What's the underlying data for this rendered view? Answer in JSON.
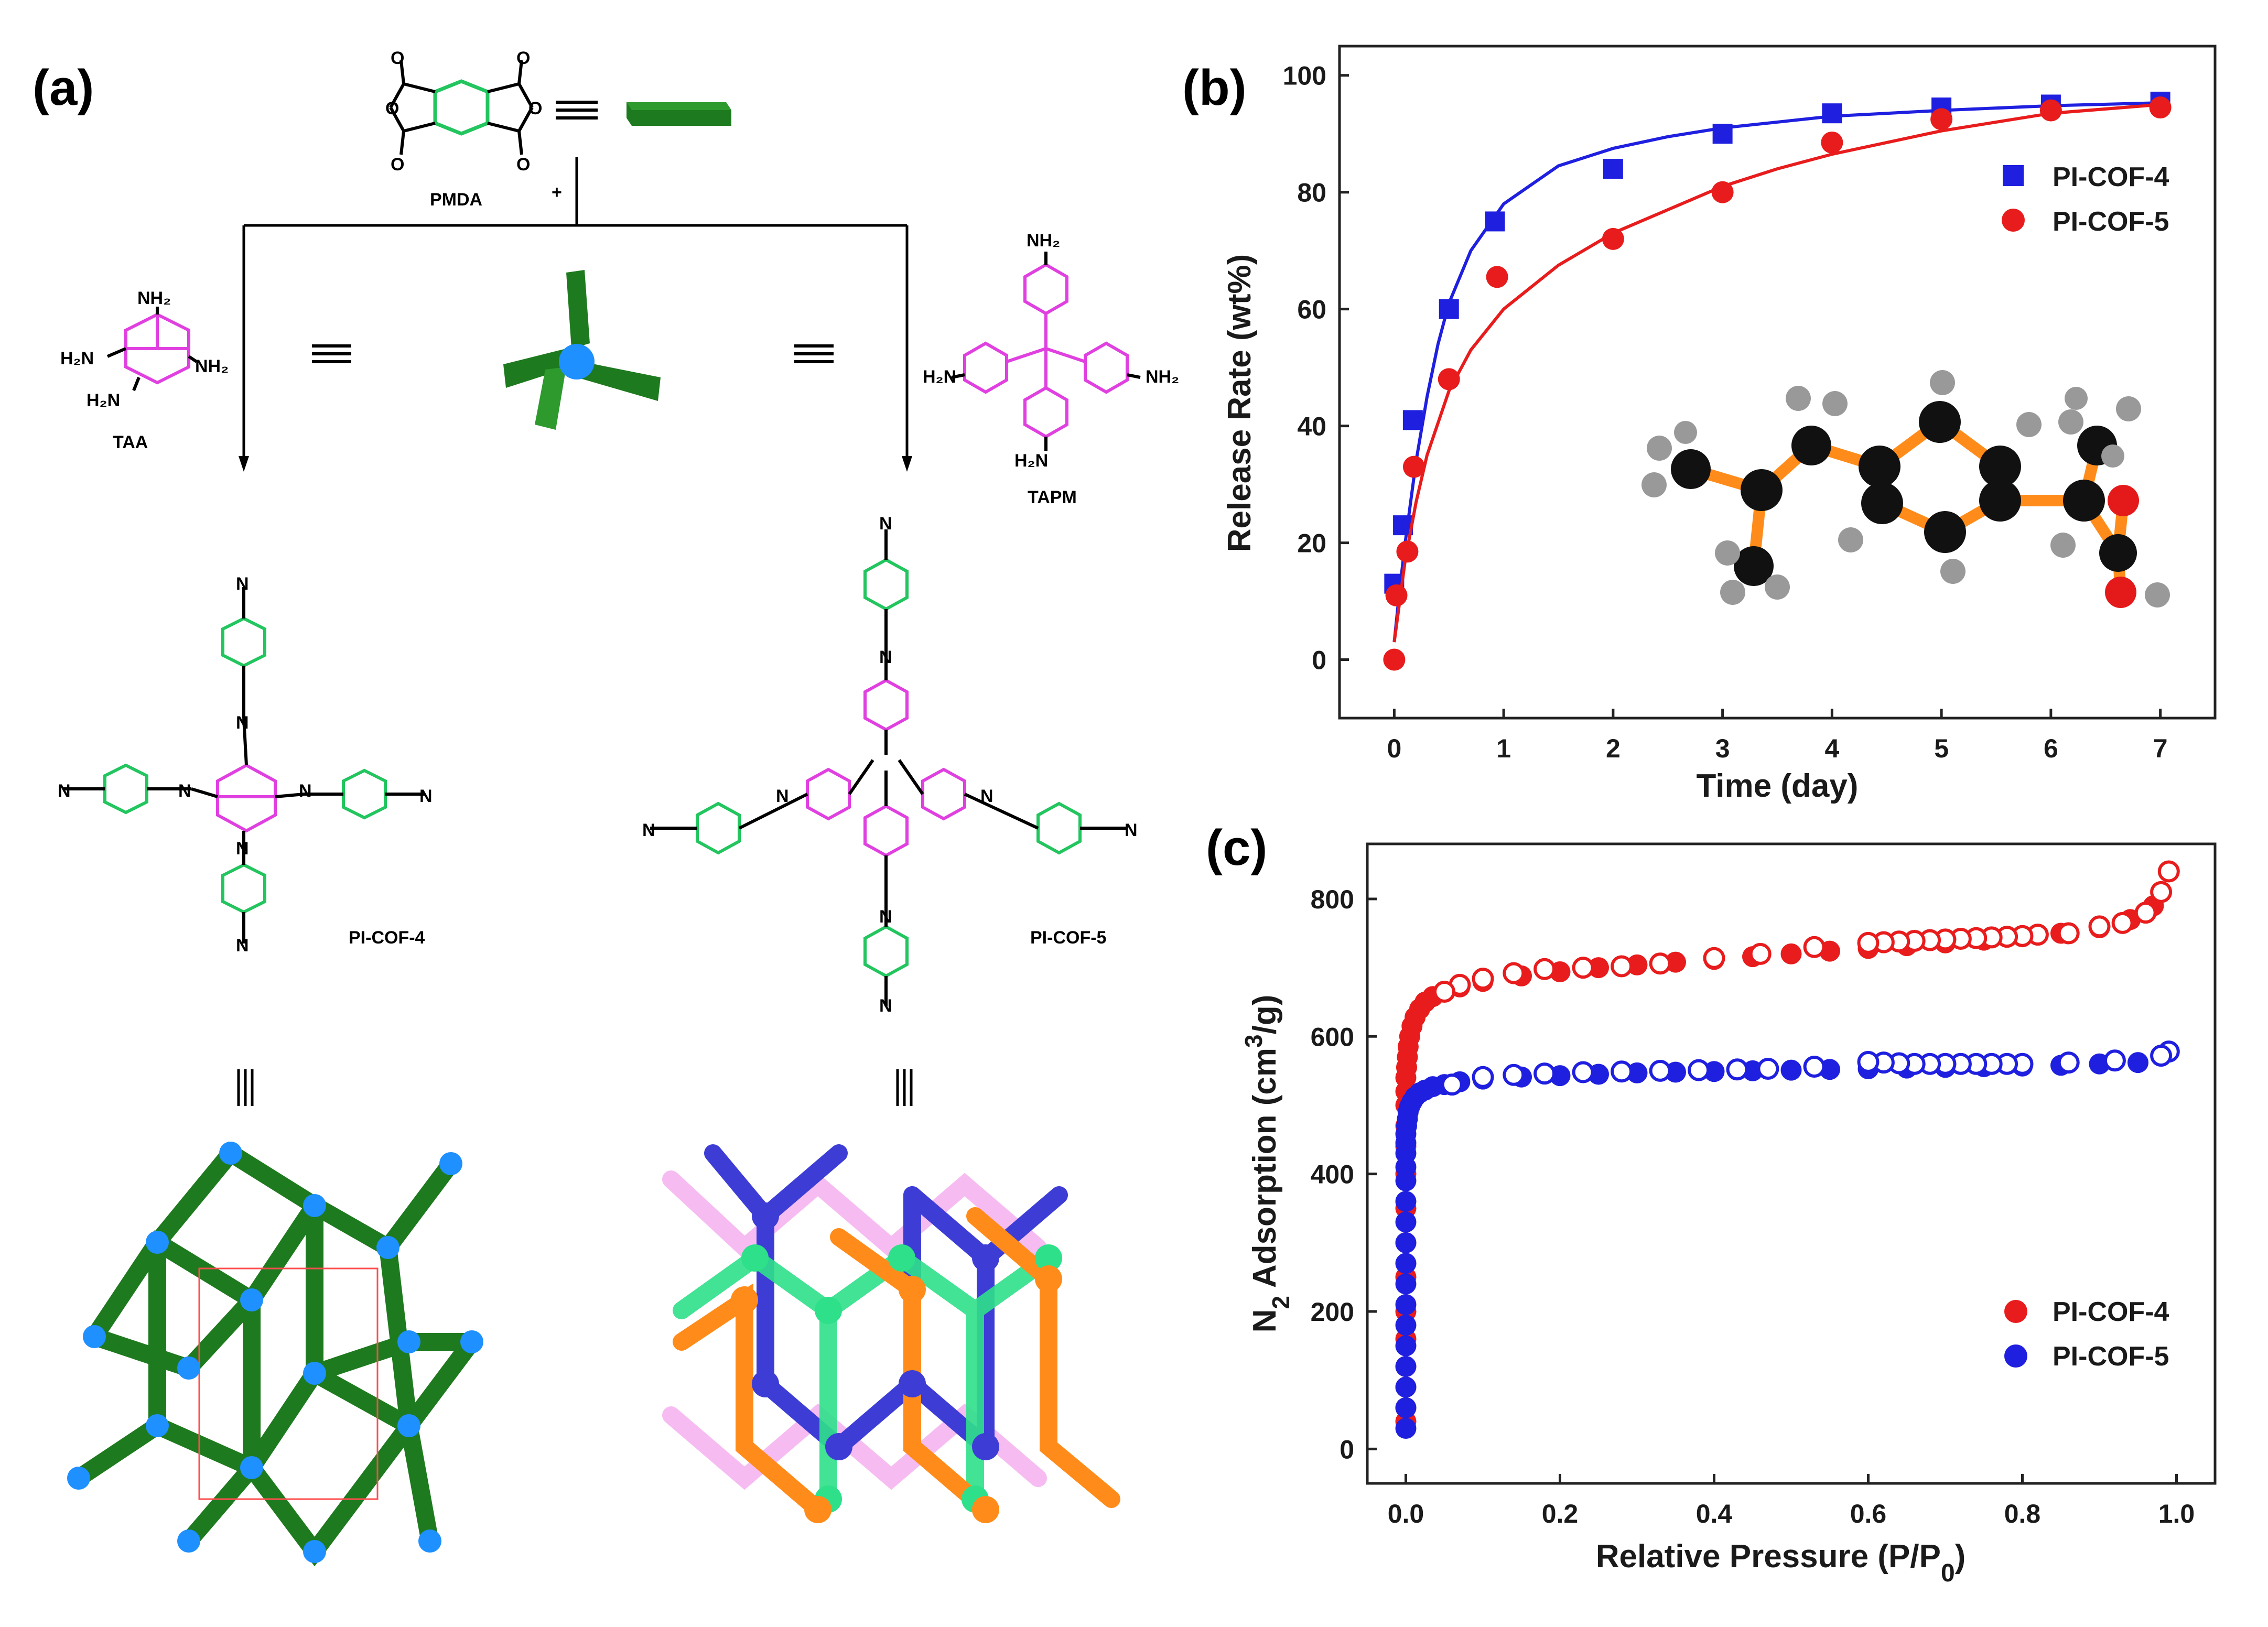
{
  "panels": {
    "a": {
      "label": "(a)",
      "plus": "+",
      "monomers": {
        "pmda": "PMDA",
        "taa": "TAA",
        "tapm": "TAPM"
      },
      "products": {
        "cof4": "PI-COF-4",
        "cof5": "PI-COF-5"
      },
      "equiv_symbol": "≡",
      "colors": {
        "green_rod": "#1e7a1e",
        "bright_green": "#22c55e",
        "magenta": "#e040e0",
        "node_blue": "#1e90ff",
        "orange": "#ff8c1a",
        "purple": "#3d3dd6"
      }
    },
    "b": {
      "label": "(b)"
    },
    "c": {
      "label": "(c)"
    }
  },
  "chart_data": [
    {
      "id": "b",
      "type": "scatter",
      "xlabel": "Time (day)",
      "ylabel": "Release Rate (wt%)",
      "xlim": [
        -0.5,
        7.5
      ],
      "ylim": [
        -10,
        105
      ],
      "xticks": [
        0,
        1,
        2,
        3,
        4,
        5,
        6,
        7
      ],
      "yticks": [
        0,
        20,
        40,
        60,
        80,
        100
      ],
      "legend_position": "top-right",
      "series": [
        {
          "name": "PI-COF-4",
          "color": "#1f1fe0",
          "marker": "square",
          "x": [
            0.0,
            0.08,
            0.17,
            0.5,
            0.92,
            2.0,
            3.0,
            4.0,
            5.0,
            6.0,
            7.0
          ],
          "y": [
            13,
            23,
            41,
            60,
            75,
            84,
            90,
            93.5,
            94.5,
            95,
            95.5
          ],
          "fit": {
            "x": [
              0,
              0.05,
              0.1,
              0.2,
              0.3,
              0.4,
              0.5,
              0.7,
              1,
              1.5,
              2,
              2.5,
              3,
              3.5,
              4,
              5,
              6,
              7
            ],
            "y": [
              3,
              12,
              20,
              34,
              45,
              54,
              61,
              70,
              78,
              84.5,
              87.5,
              89.5,
              91,
              92,
              93,
              94,
              94.8,
              95.3
            ]
          }
        },
        {
          "name": "PI-COF-5",
          "color": "#e81c1c",
          "marker": "circle",
          "x": [
            0.0,
            0.02,
            0.12,
            0.18,
            0.5,
            0.94,
            2.0,
            3.0,
            4.0,
            5.0,
            6.0,
            7.0
          ],
          "y": [
            0,
            11,
            18.5,
            33,
            48,
            65.5,
            72,
            80,
            88.5,
            92.5,
            94,
            94.5
          ],
          "fit": {
            "x": [
              0,
              0.05,
              0.1,
              0.2,
              0.3,
              0.5,
              0.7,
              1,
              1.5,
              2,
              2.5,
              3,
              3.5,
              4,
              5,
              6,
              7
            ],
            "y": [
              3,
              10,
              17,
              27,
              35,
              46,
              53,
              60,
              67.5,
              73,
              77,
              81,
              84,
              86.5,
              90.5,
              93.5,
              95
            ]
          }
        }
      ]
    },
    {
      "id": "c",
      "type": "scatter",
      "xlabel": "Relative Pressure (P/P",
      "xlabel_sub": "0",
      "xlabel_end": ")",
      "ylabel_parts": [
        "N",
        "2",
        " Adsorption (cm",
        "3",
        "/g)"
      ],
      "xlim": [
        -0.05,
        1.05
      ],
      "ylim": [
        -50,
        880
      ],
      "xticks": [
        0.0,
        0.2,
        0.4,
        0.6,
        0.8,
        1.0
      ],
      "xtick_labels": [
        "0.0",
        "0.2",
        "0.4",
        "0.6",
        "0.8",
        "1.0"
      ],
      "yticks": [
        0,
        200,
        400,
        600,
        800
      ],
      "legend_position": "bottom-right",
      "series": [
        {
          "name": "PI-COF-4",
          "color": "#e81c1c",
          "adsorption": {
            "x": [
              0.0,
              0.0,
              0.0,
              0.0,
              0.0,
              0.0,
              0.0,
              0.0,
              0.0,
              0.0,
              0.0,
              0.0,
              0.0,
              0.0,
              0.0,
              0.001,
              0.002,
              0.003,
              0.005,
              0.008,
              0.012,
              0.018,
              0.025,
              0.035,
              0.05,
              0.07,
              0.1,
              0.15,
              0.2,
              0.25,
              0.3,
              0.35,
              0.4,
              0.45,
              0.5,
              0.55,
              0.6,
              0.65,
              0.7,
              0.75,
              0.8,
              0.85,
              0.9,
              0.94,
              0.97,
              0.99
            ],
            "y": [
              40,
              60,
              90,
              120,
              160,
              200,
              250,
              300,
              350,
              400,
              440,
              470,
              500,
              520,
              540,
              555,
              570,
              585,
              600,
              615,
              628,
              640,
              650,
              658,
              665,
              672,
              680,
              688,
              694,
              700,
              704,
              708,
              712,
              716,
              720,
              724,
              728,
              732,
              736,
              740,
              745,
              750,
              758,
              770,
              790,
              840
            ]
          },
          "desorption": {
            "x": [
              0.99,
              0.98,
              0.96,
              0.93,
              0.9,
              0.86,
              0.82,
              0.8,
              0.78,
              0.76,
              0.74,
              0.72,
              0.7,
              0.68,
              0.66,
              0.64,
              0.62,
              0.6,
              0.53,
              0.46,
              0.4,
              0.33,
              0.28,
              0.23,
              0.18,
              0.14,
              0.1,
              0.07,
              0.05
            ],
            "y": [
              840,
              810,
              780,
              765,
              760,
              750,
              748,
              746,
              745,
              744,
              743,
              742,
              741,
              740,
              739,
              738,
              737,
              736,
              730,
              720,
              714,
              706,
              702,
              700,
              698,
              692,
              684,
              675,
              665
            ]
          }
        },
        {
          "name": "PI-COF-5",
          "color": "#1f1fe0",
          "adsorption": {
            "x": [
              0.0,
              0.0,
              0.0,
              0.0,
              0.0,
              0.0,
              0.0,
              0.0,
              0.0,
              0.0,
              0.0,
              0.0,
              0.0,
              0.0,
              0.0,
              0.0,
              0.0,
              0.001,
              0.002,
              0.003,
              0.005,
              0.008,
              0.012,
              0.018,
              0.025,
              0.035,
              0.05,
              0.07,
              0.1,
              0.15,
              0.2,
              0.25,
              0.3,
              0.35,
              0.4,
              0.45,
              0.5,
              0.55,
              0.6,
              0.65,
              0.7,
              0.75,
              0.8,
              0.85,
              0.9,
              0.95,
              0.99
            ],
            "y": [
              30,
              60,
              90,
              120,
              150,
              180,
              210,
              240,
              270,
              300,
              330,
              360,
              390,
              410,
              430,
              445,
              458,
              470,
              480,
              490,
              498,
              505,
              512,
              518,
              522,
              527,
              530,
              534,
              538,
              541,
              543,
              545,
              547,
              548,
              549,
              550,
              551,
              552,
              553,
              554,
              555,
              556,
              557,
              558,
              560,
              562,
              578
            ]
          },
          "desorption": {
            "x": [
              0.99,
              0.98,
              0.92,
              0.86,
              0.8,
              0.78,
              0.76,
              0.74,
              0.72,
              0.7,
              0.68,
              0.66,
              0.64,
              0.62,
              0.6,
              0.53,
              0.47,
              0.43,
              0.38,
              0.33,
              0.28,
              0.23,
              0.18,
              0.14,
              0.1,
              0.06
            ],
            "y": [
              578,
              572,
              565,
              562,
              560,
              560,
              560,
              560,
              560,
              560,
              560,
              560,
              561,
              562,
              563,
              556,
              553,
              552,
              551,
              550,
              549,
              548,
              546,
              544,
              541,
              530
            ]
          }
        }
      ]
    }
  ]
}
